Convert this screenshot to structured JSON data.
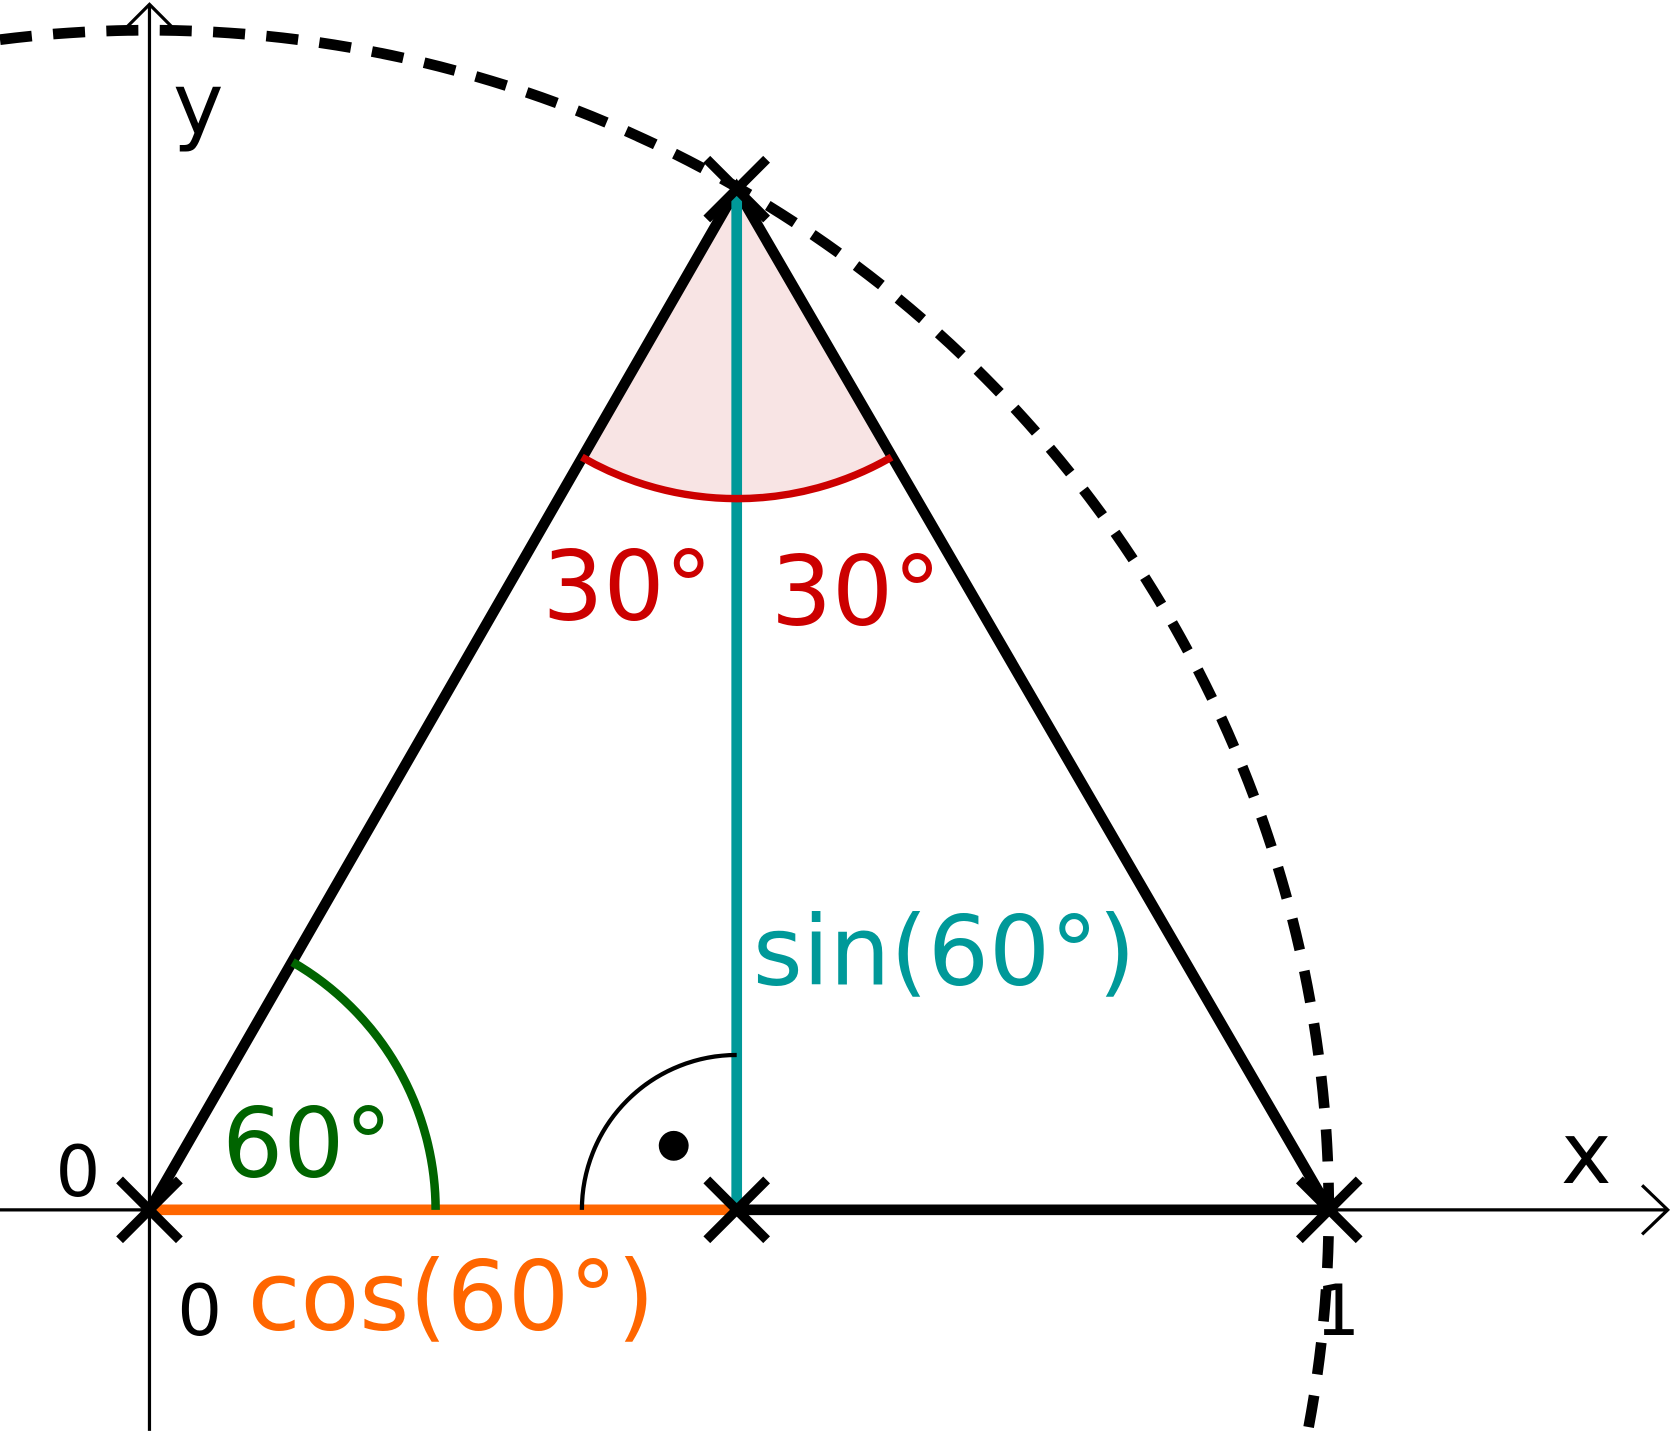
{
  "axes": {
    "x": "x",
    "y": "y"
  },
  "ticks": {
    "origin_y": "0",
    "origin_x": "0",
    "one": "1"
  },
  "angles": {
    "bottom": "60°",
    "top_left": "30°",
    "top_right": "30°"
  },
  "segments": {
    "sin": "sin(60°)",
    "cos": "cos(60°)"
  }
}
